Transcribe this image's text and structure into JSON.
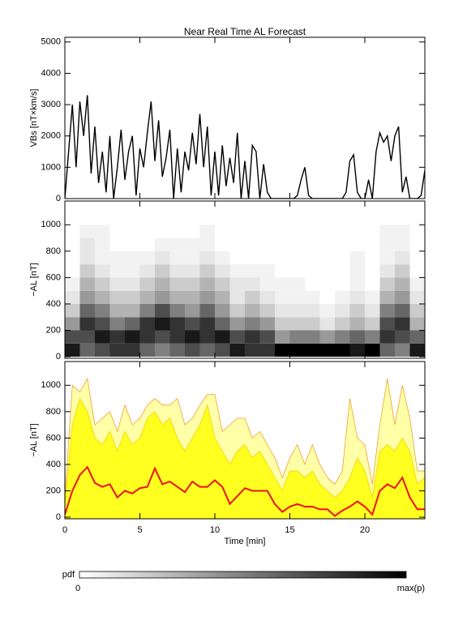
{
  "title": "Near Real Time AL Forecast",
  "chart_data": [
    {
      "type": "line",
      "ylabel": "VBs [nT×km/s]",
      "xlim": [
        0,
        24
      ],
      "ylim": [
        0,
        5150
      ],
      "yticks": [
        0,
        1000,
        2000,
        3000,
        4000,
        5000
      ],
      "x": [
        0,
        0.25,
        0.5,
        0.75,
        1,
        1.25,
        1.5,
        1.75,
        2,
        2.25,
        2.5,
        2.75,
        3,
        3.25,
        3.5,
        3.75,
        4,
        4.25,
        4.5,
        4.75,
        5,
        5.25,
        5.5,
        5.75,
        6,
        6.25,
        6.5,
        6.75,
        7,
        7.25,
        7.5,
        7.75,
        8,
        8.25,
        8.5,
        8.75,
        9,
        9.25,
        9.5,
        9.75,
        10,
        10.25,
        10.5,
        10.75,
        11,
        11.25,
        11.5,
        11.75,
        12,
        12.25,
        12.5,
        12.75,
        13,
        13.25,
        13.5,
        13.75,
        14,
        14.25,
        14.5,
        14.75,
        15,
        15.25,
        15.5,
        15.75,
        16,
        16.25,
        16.5,
        16.75,
        17,
        17.25,
        17.5,
        17.75,
        18,
        18.25,
        18.5,
        18.75,
        19,
        19.25,
        19.5,
        19.75,
        20,
        20.25,
        20.5,
        20.75,
        21,
        21.25,
        21.5,
        21.75,
        22,
        22.25,
        22.5,
        22.75,
        23,
        23.25,
        23.5,
        23.75,
        24
      ],
      "series": [
        {
          "color": "#000000",
          "values": [
            0,
            1500,
            3000,
            1000,
            3100,
            2000,
            3300,
            800,
            2300,
            500,
            1500,
            200,
            2000,
            0,
            1000,
            2200,
            600,
            1500,
            2000,
            100,
            1600,
            1000,
            2100,
            3100,
            1200,
            2500,
            700,
            1300,
            2200,
            0,
            1600,
            200,
            1500,
            900,
            2100,
            1100,
            2700,
            1000,
            2300,
            100,
            1500,
            100,
            1700,
            400,
            1300,
            500,
            2100,
            0,
            1200,
            0,
            1700,
            1500,
            0,
            1100,
            200,
            0,
            0,
            0,
            0,
            0,
            0,
            0,
            100,
            600,
            1000,
            100,
            0,
            0,
            0,
            0,
            0,
            0,
            0,
            0,
            0,
            200,
            1200,
            1400,
            200,
            0,
            0,
            600,
            0,
            1500,
            2100,
            1800,
            2000,
            1200,
            2000,
            2300,
            200,
            700,
            0,
            0,
            0,
            100,
            900
          ]
        }
      ]
    },
    {
      "type": "heatmap",
      "ylabel": "−AL [nT]",
      "xlim": [
        0,
        24
      ],
      "ylim": [
        -12,
        1180
      ],
      "yticks": [
        0,
        200,
        400,
        600,
        800,
        1000
      ],
      "time_bins": [
        0,
        1,
        2,
        3,
        4,
        5,
        6,
        7,
        8,
        9,
        10,
        11,
        12,
        13,
        14,
        15,
        16,
        17,
        18,
        19,
        20,
        21,
        22,
        23,
        24
      ],
      "al_bins": [
        0,
        100,
        200,
        300,
        400,
        500,
        600,
        700,
        800,
        900,
        1000
      ],
      "pdf": [
        [
          0.9,
          0.7,
          0.4,
          0.2,
          0.1,
          0.05,
          0,
          0,
          0,
          0
        ],
        [
          0.6,
          0.7,
          0.8,
          0.6,
          0.4,
          0.3,
          0.2,
          0.1,
          0.1,
          0.05
        ],
        [
          0.7,
          0.9,
          0.7,
          0.5,
          0.3,
          0.2,
          0.1,
          0.05,
          0.05,
          0.05
        ],
        [
          0.8,
          0.8,
          0.5,
          0.3,
          0.2,
          0.1,
          0.05,
          0.05,
          0,
          0
        ],
        [
          0.8,
          0.9,
          0.6,
          0.3,
          0.2,
          0.1,
          0.05,
          0.05,
          0,
          0
        ],
        [
          0.6,
          0.8,
          0.8,
          0.5,
          0.3,
          0.2,
          0.1,
          0.05,
          0,
          0
        ],
        [
          0.5,
          0.7,
          0.9,
          0.7,
          0.4,
          0.3,
          0.2,
          0.1,
          0.05,
          0
        ],
        [
          0.6,
          0.8,
          0.8,
          0.5,
          0.3,
          0.2,
          0.1,
          0.05,
          0.05,
          0
        ],
        [
          0.7,
          0.9,
          0.7,
          0.4,
          0.3,
          0.2,
          0.1,
          0.05,
          0.05,
          0
        ],
        [
          0.6,
          0.8,
          0.8,
          0.6,
          0.4,
          0.3,
          0.2,
          0.1,
          0.05,
          0.05
        ],
        [
          0.7,
          0.9,
          0.6,
          0.4,
          0.3,
          0.2,
          0.1,
          0.05,
          0,
          0
        ],
        [
          0.9,
          0.7,
          0.4,
          0.2,
          0.1,
          0.1,
          0.05,
          0,
          0,
          0
        ],
        [
          0.8,
          0.8,
          0.5,
          0.3,
          0.2,
          0.1,
          0.05,
          0,
          0,
          0
        ],
        [
          0.8,
          0.7,
          0.4,
          0.2,
          0.1,
          0.05,
          0.05,
          0,
          0,
          0
        ],
        [
          1,
          0.4,
          0.2,
          0.1,
          0.05,
          0.05,
          0,
          0,
          0,
          0
        ],
        [
          1,
          0.5,
          0.2,
          0.1,
          0.05,
          0.05,
          0,
          0,
          0,
          0
        ],
        [
          1,
          0.5,
          0.2,
          0.1,
          0.05,
          0,
          0,
          0,
          0,
          0
        ],
        [
          1,
          0.4,
          0.1,
          0.05,
          0,
          0,
          0,
          0,
          0,
          0
        ],
        [
          1,
          0.5,
          0.2,
          0.1,
          0.05,
          0,
          0,
          0,
          0,
          0
        ],
        [
          0.9,
          0.6,
          0.3,
          0.2,
          0.1,
          0.05,
          0.05,
          0.05,
          0,
          0
        ],
        [
          1,
          0.5,
          0.2,
          0.1,
          0.05,
          0,
          0,
          0,
          0,
          0
        ],
        [
          0.6,
          0.8,
          0.7,
          0.5,
          0.3,
          0.2,
          0.1,
          0.05,
          0.05,
          0.05
        ],
        [
          0.5,
          0.7,
          0.8,
          0.6,
          0.4,
          0.3,
          0.2,
          0.1,
          0.05,
          0.05
        ],
        [
          0.9,
          0.6,
          0.3,
          0.2,
          0.1,
          0.05,
          0,
          0,
          0,
          0
        ]
      ]
    },
    {
      "type": "band",
      "ylabel": "−AL [nT]",
      "xlabel": "Time [min]",
      "xlim": [
        0,
        24
      ],
      "xticks": [
        0,
        5,
        10,
        15,
        20
      ],
      "ylim": [
        -12,
        1180
      ],
      "yticks": [
        0,
        200,
        400,
        600,
        800,
        1000
      ],
      "x": [
        0,
        0.5,
        1,
        1.5,
        2,
        2.5,
        3,
        3.5,
        4,
        4.5,
        5,
        5.5,
        6,
        6.5,
        7,
        7.5,
        8,
        8.5,
        9,
        9.5,
        10,
        10.5,
        11,
        11.5,
        12,
        12.5,
        13,
        13.5,
        14,
        14.5,
        15,
        15.5,
        16,
        16.5,
        17,
        17.5,
        18,
        18.5,
        19,
        19.5,
        20,
        20.5,
        21,
        21.5,
        22,
        22.5,
        23,
        23.5,
        24
      ],
      "series": [
        {
          "color": "#f0a030",
          "fill": "#ffffa8",
          "values": [
            150,
            1000,
            950,
            1050,
            700,
            750,
            800,
            650,
            850,
            700,
            750,
            850,
            900,
            850,
            850,
            900,
            700,
            750,
            850,
            930,
            930,
            650,
            700,
            750,
            750,
            600,
            650,
            550,
            450,
            300,
            450,
            550,
            400,
            550,
            400,
            300,
            250,
            350,
            900,
            600,
            550,
            250,
            700,
            1050,
            700,
            1000,
            750,
            350,
            350
          ]
        },
        {
          "color": "#f5d000",
          "fill": "#ffff20",
          "values": [
            100,
            700,
            900,
            800,
            600,
            550,
            650,
            500,
            650,
            550,
            600,
            750,
            800,
            700,
            750,
            600,
            500,
            600,
            700,
            850,
            600,
            500,
            400,
            500,
            550,
            450,
            500,
            400,
            300,
            200,
            350,
            350,
            300,
            350,
            250,
            200,
            150,
            200,
            300,
            450,
            350,
            150,
            500,
            550,
            500,
            600,
            500,
            250,
            300
          ]
        },
        {
          "color": "#ee1111",
          "values": [
            20,
            200,
            320,
            380,
            260,
            230,
            250,
            150,
            200,
            180,
            220,
            230,
            370,
            250,
            270,
            230,
            190,
            270,
            230,
            230,
            280,
            230,
            100,
            160,
            220,
            200,
            200,
            200,
            100,
            40,
            80,
            100,
            80,
            80,
            60,
            60,
            10,
            50,
            80,
            120,
            80,
            20,
            200,
            250,
            220,
            300,
            150,
            60,
            60
          ]
        }
      ]
    }
  ],
  "colorbar": {
    "label": "pdf",
    "min_label": "0",
    "max_label": "max(p)"
  }
}
